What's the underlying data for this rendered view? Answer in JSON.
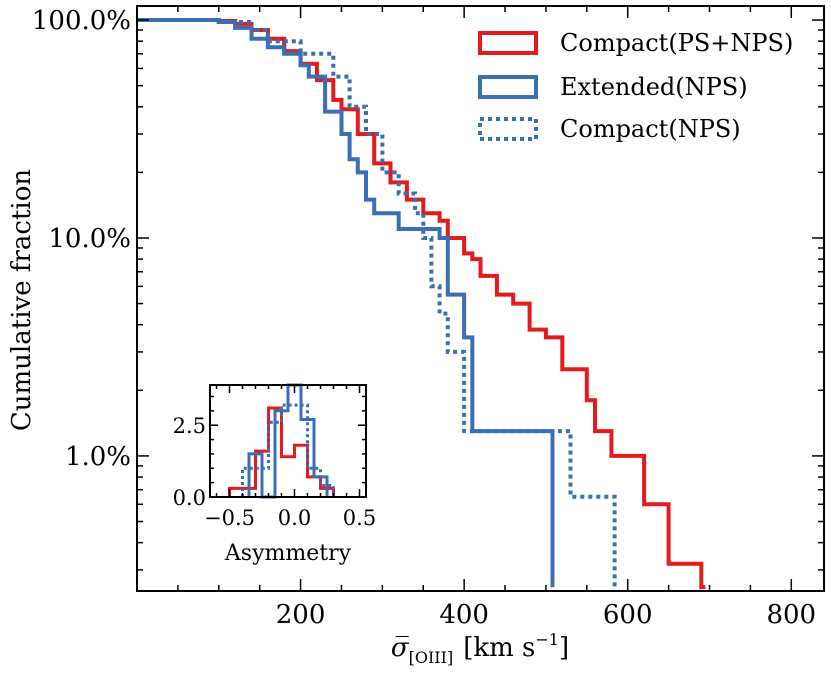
{
  "chart_data": [
    {
      "type": "line",
      "ylabel": "Cumulative  fraction",
      "xlabel_main": "σ̅",
      "xlabel_sub": "[OIII]",
      "xlabel_unit": "[km s",
      "xlabel_unit_sup": "−1",
      "xlabel_unit_close": "]",
      "xlim": [
        0,
        840
      ],
      "ylim": [
        0.0024,
        1.16
      ],
      "yscale": "log",
      "xticks": [
        200,
        400,
        600,
        800
      ],
      "xtick_labels": [
        "200",
        "400",
        "600",
        "800"
      ],
      "yticks": [
        1.0,
        0.1,
        0.01
      ],
      "ytick_labels": [
        "100.0%",
        "10.0%",
        "1.0%"
      ],
      "legend_position": "top-right",
      "colors": {
        "red": "#e41a1c",
        "blue": "#3a6fb5"
      },
      "series": [
        {
          "name": "Compact(PS+NPS)",
          "color": "#e41a1c",
          "style": "solid",
          "x": [
            0,
            60,
            100,
            120,
            140,
            160,
            180,
            200,
            220,
            240,
            250,
            270,
            290,
            310,
            330,
            350,
            370,
            380,
            400,
            410,
            420,
            440,
            460,
            480,
            500,
            520,
            550,
            560,
            580,
            620,
            650,
            690,
            695
          ],
          "y": [
            1.0,
            1.0,
            0.99,
            0.96,
            0.9,
            0.82,
            0.72,
            0.63,
            0.53,
            0.43,
            0.39,
            0.3,
            0.22,
            0.18,
            0.15,
            0.13,
            0.12,
            0.1,
            0.085,
            0.08,
            0.067,
            0.055,
            0.05,
            0.038,
            0.035,
            0.025,
            0.018,
            0.013,
            0.01,
            0.006,
            0.0032,
            0.0025,
            0.0025
          ]
        },
        {
          "name": "Extended(NPS)",
          "color": "#3a6fb5",
          "style": "solid",
          "x": [
            0,
            60,
            100,
            120,
            140,
            160,
            180,
            200,
            210,
            230,
            250,
            260,
            270,
            280,
            290,
            320,
            370,
            380,
            400,
            410,
            490,
            505,
            508
          ],
          "y": [
            1.0,
            1.0,
            0.98,
            0.92,
            0.82,
            0.75,
            0.7,
            0.62,
            0.55,
            0.38,
            0.3,
            0.23,
            0.2,
            0.15,
            0.13,
            0.11,
            0.1,
            0.055,
            0.035,
            0.013,
            0.013,
            0.013,
            0.0025
          ]
        },
        {
          "name": "Compact(NPS)",
          "color": "#3a6fb5",
          "style": "dotted",
          "x": [
            0,
            60,
            100,
            140,
            160,
            200,
            240,
            260,
            280,
            300,
            320,
            340,
            350,
            360,
            370,
            380,
            400,
            500,
            530,
            560,
            580,
            584
          ],
          "y": [
            1.0,
            1.0,
            0.98,
            0.9,
            0.8,
            0.7,
            0.55,
            0.4,
            0.3,
            0.2,
            0.16,
            0.13,
            0.1,
            0.06,
            0.045,
            0.03,
            0.013,
            0.013,
            0.0065,
            0.0065,
            0.0065,
            0.0025
          ]
        }
      ]
    },
    {
      "type": "histogram",
      "xlabel": "Asymmetry",
      "xlim": [
        -0.65,
        0.55
      ],
      "ylim": [
        0,
        3.9
      ],
      "xticks": [
        -0.5,
        0.0,
        0.5
      ],
      "xtick_labels": [
        "−0.5",
        "0.0",
        "0.5"
      ],
      "yticks": [
        0,
        2.5
      ],
      "ytick_labels": [
        "0.0",
        "2.5"
      ],
      "series": [
        {
          "name": "Compact(PS+NPS)",
          "color": "#e41a1c",
          "style": "solid",
          "edges": [
            -0.5,
            -0.3,
            -0.2,
            -0.1,
            0.0,
            0.1,
            0.2,
            0.3
          ],
          "values": [
            0.3,
            1.6,
            3.1,
            1.4,
            1.8,
            0.7,
            0.3
          ]
        },
        {
          "name": "Extended(NPS)",
          "color": "#3a6fb5",
          "style": "solid",
          "edges": [
            -0.35,
            -0.25,
            -0.15,
            -0.05,
            0.05,
            0.15,
            0.25
          ],
          "values": [
            1.5,
            0.0,
            3.0,
            3.9,
            2.7,
            0.7
          ]
        },
        {
          "name": "Compact(NPS)",
          "color": "#3a6fb5",
          "style": "dotted",
          "edges": [
            -0.4,
            -0.2,
            -0.1,
            0.0,
            0.1,
            0.2,
            0.3
          ],
          "values": [
            1.0,
            2.6,
            3.2,
            3.2,
            1.0,
            0.4
          ]
        }
      ]
    }
  ]
}
